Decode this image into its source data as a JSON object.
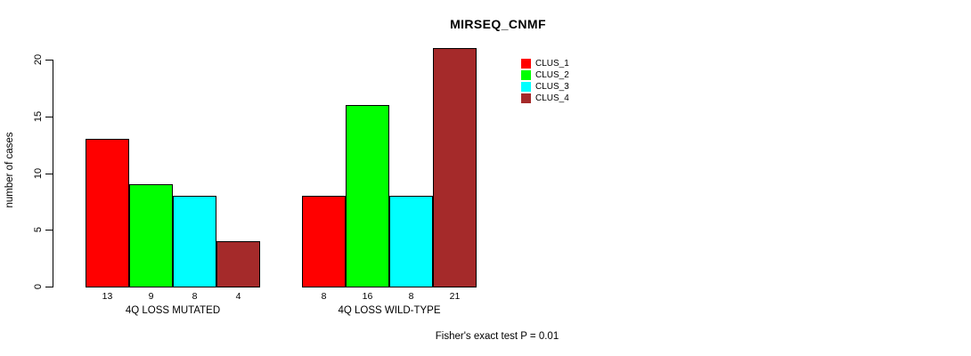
{
  "chart_data": {
    "type": "bar",
    "title": "MIRSEQ_CNMF",
    "xlabel": "",
    "ylabel": "number of cases",
    "ylim": [
      0,
      21
    ],
    "yticks": [
      0,
      5,
      10,
      15,
      20
    ],
    "grid": false,
    "legend_position": "right",
    "categories": [
      "4Q LOSS MUTATED",
      "4Q LOSS WILD-TYPE"
    ],
    "series": [
      {
        "name": "CLUS_1",
        "color": "#ff0000",
        "values": [
          13,
          8
        ]
      },
      {
        "name": "CLUS_2",
        "color": "#00ff00",
        "values": [
          9,
          16
        ]
      },
      {
        "name": "CLUS_3",
        "color": "#00ffff",
        "values": [
          8,
          8
        ]
      },
      {
        "name": "CLUS_4",
        "color": "#a52a2a",
        "values": [
          4,
          21
        ]
      }
    ],
    "bar_value_labels": true,
    "annotation": "Fisher's exact test P = 0.01",
    "axis_color": "#000000",
    "background_color": "#ffffff"
  }
}
